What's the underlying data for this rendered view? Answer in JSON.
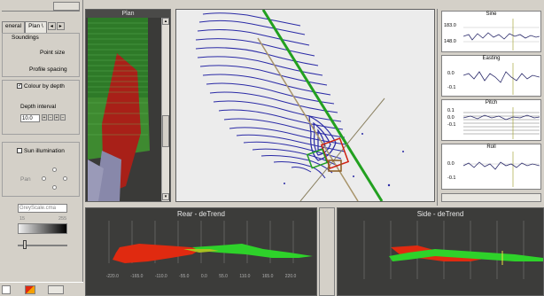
{
  "left_panel": {
    "tabs": [
      {
        "label": "eneral"
      },
      {
        "label": "Plan \\"
      }
    ],
    "soundings_title": "Soundings",
    "point_size_label": "Point size",
    "profile_spacing_label": "Profile spacing",
    "colour_by_depth_label": "Colour by depth",
    "colour_by_depth_checked": true,
    "depth_interval_label": "Depth interval",
    "depth_interval_value": "10.0",
    "sun_illumination_label": "Sun illumination",
    "sun_illumination_checked": false,
    "pan_label": "Pan",
    "colormap_input_value": "GreyScale.cma",
    "gradient_min_label": "15",
    "gradient_max_label": "255"
  },
  "plan_panel": {
    "title": "Plan"
  },
  "right_panel": {
    "charts": [
      {
        "title": "Sine",
        "yticks": [
          "183.0",
          "148.0"
        ]
      },
      {
        "title": "Easting",
        "yticks": [
          "0.0",
          "-0.1"
        ]
      },
      {
        "title": "Pitch",
        "yticks": [
          "0.1",
          "0.0",
          "-0.1"
        ]
      },
      {
        "title": "Roll",
        "yticks": [
          "0.0",
          "-0.1"
        ]
      }
    ]
  },
  "bottom_panels": {
    "rear": {
      "title": "Rear - deTrend",
      "x_ticks": [
        "-220.0",
        "-165.0",
        "-110.0",
        "-55.0",
        "0.0",
        "55.0",
        "110.0",
        "165.0",
        "220.0"
      ]
    },
    "side": {
      "title": "Side - deTrend"
    }
  },
  "colors": {
    "accent_green": "#22c41e",
    "accent_red": "#e02a10",
    "contour_blue": "#2828a0",
    "panel_bg": "#d4d0c8"
  }
}
